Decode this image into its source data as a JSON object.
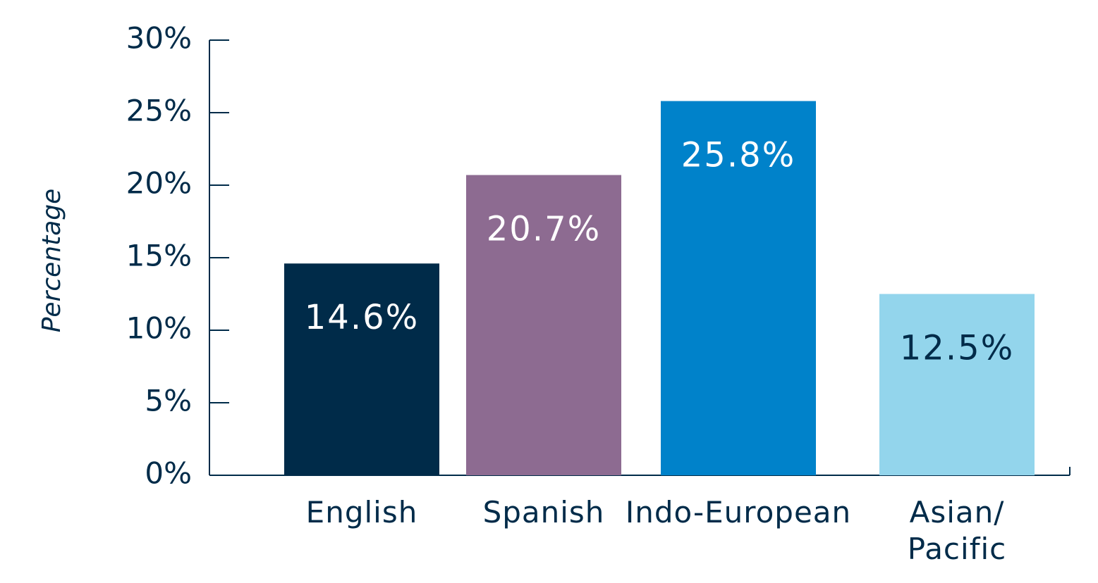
{
  "chart_data": {
    "type": "bar",
    "y_label": "Percentage",
    "categories": [
      "English",
      "Spanish",
      "Indo-European",
      "Asian/\nPacific"
    ],
    "values": [
      14.6,
      20.7,
      25.8,
      12.5
    ],
    "value_labels": [
      "14.6%",
      "20.7%",
      "25.8%",
      "12.5%"
    ],
    "colors": [
      "#002b49",
      "#8d6b91",
      "#0082ca",
      "#93d5ec"
    ],
    "value_label_colors": [
      "#ffffff",
      "#ffffff",
      "#ffffff",
      "#002b49"
    ],
    "ylim": [
      0,
      30
    ],
    "yticks": [
      {
        "value": 0,
        "label": "0%"
      },
      {
        "value": 5,
        "label": "5%"
      },
      {
        "value": 10,
        "label": "10%"
      },
      {
        "value": 15,
        "label": "15%"
      },
      {
        "value": 20,
        "label": "20%"
      },
      {
        "value": 25,
        "label": "25%"
      },
      {
        "value": 30,
        "label": "30%"
      }
    ],
    "grid": false
  }
}
